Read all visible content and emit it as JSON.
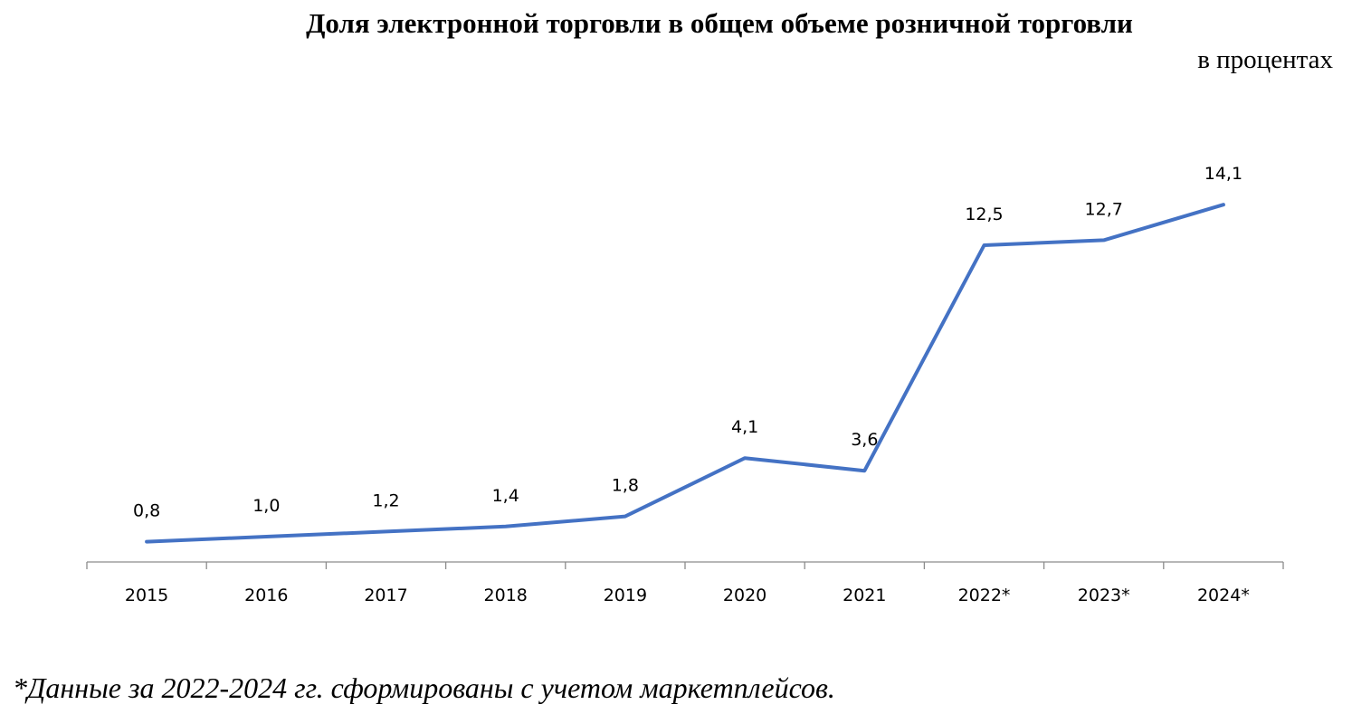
{
  "chart_data": {
    "type": "line",
    "title": "Доля электронной торговли в общем объеме розничной торговли",
    "unit_label": "в процентах",
    "categories": [
      "2015",
      "2016",
      "2017",
      "2018",
      "2019",
      "2020",
      "2021",
      "2022*",
      "2023*",
      "2024*"
    ],
    "series": [
      {
        "values": [
          0.8,
          1.0,
          1.2,
          1.4,
          1.8,
          4.1,
          3.6,
          12.5,
          12.7,
          14.1
        ],
        "labels": [
          "0,8",
          "1,0",
          "1,2",
          "1,4",
          "1,8",
          "4,1",
          "3,6",
          "12,5",
          "12,7",
          "14,1"
        ],
        "color": "#4472C4"
      }
    ],
    "ylim": [
      0,
      16
    ],
    "grid": false,
    "legend": "none",
    "footnote": "*Данные за 2022-2024 гг. сформированы с учетом маркетплейсов."
  }
}
